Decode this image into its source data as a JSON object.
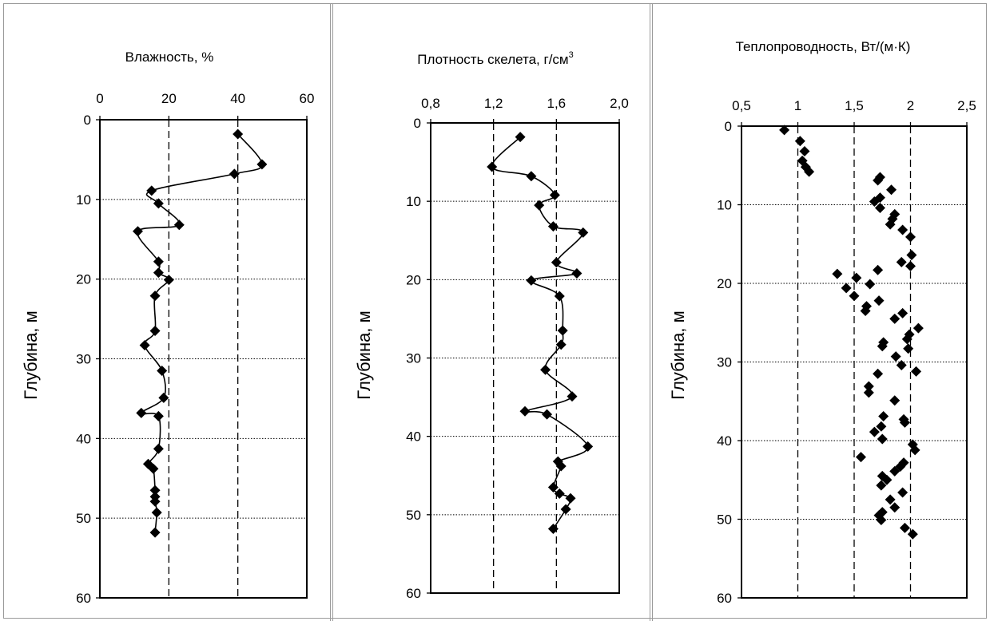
{
  "chart_data": [
    {
      "type": "line",
      "title": "Влажность, %",
      "xlabel": "Влажность, %",
      "ylabel": "Глубина, м",
      "xlim": [
        0,
        60
      ],
      "ylim": [
        0,
        60
      ],
      "y_inverted": true,
      "x_axis_position": "top",
      "xticks": [
        0,
        20,
        40,
        60
      ],
      "yticks": [
        0,
        10,
        20,
        30,
        40,
        50,
        60
      ],
      "vertical_reference_lines": [
        20,
        40
      ],
      "horizontal_gridlines": [
        10,
        20,
        30,
        40,
        50
      ],
      "marker": "diamond",
      "series": [
        {
          "points": [
            [
              40,
              1.8
            ],
            [
              47,
              5.6
            ],
            [
              39,
              6.8
            ],
            [
              15,
              8.9
            ],
            [
              17,
              10.5
            ],
            [
              23,
              13.2
            ],
            [
              11,
              14
            ],
            [
              17,
              17.8
            ],
            [
              17,
              19.2
            ],
            [
              20,
              20.1
            ],
            [
              16,
              22.1
            ],
            [
              16,
              26.5
            ],
            [
              13,
              28.3
            ],
            [
              18,
              31.5
            ],
            [
              18.5,
              34.9
            ],
            [
              12,
              36.8
            ],
            [
              17,
              37.2
            ],
            [
              17,
              41.3
            ],
            [
              14,
              43.2
            ],
            [
              15.5,
              43.8
            ],
            [
              16,
              46.5
            ],
            [
              16,
              47.3
            ],
            [
              16,
              47.9
            ],
            [
              16.5,
              49.3
            ],
            [
              16,
              51.8
            ]
          ]
        }
      ]
    },
    {
      "type": "line",
      "title": "Плотность скелета, г/см",
      "title_superscript": "3",
      "xlabel": "Плотность скелета, г/см3",
      "ylabel": "Глубина, м",
      "xlim": [
        0.8,
        2.0
      ],
      "ylim": [
        0,
        60
      ],
      "y_inverted": true,
      "x_axis_position": "top",
      "xticks": [
        "0,8",
        "1,2",
        "1,6",
        "2,0"
      ],
      "yticks": [
        0,
        10,
        20,
        30,
        40,
        50,
        60
      ],
      "vertical_reference_lines": [
        1.2,
        1.6
      ],
      "horizontal_gridlines": [
        10,
        20,
        30,
        40,
        50
      ],
      "marker": "diamond",
      "series": [
        {
          "points": [
            [
              1.37,
              1.8
            ],
            [
              1.19,
              5.6
            ],
            [
              1.44,
              6.8
            ],
            [
              1.59,
              9.2
            ],
            [
              1.49,
              10.5
            ],
            [
              1.58,
              13.2
            ],
            [
              1.77,
              14
            ],
            [
              1.6,
              17.8
            ],
            [
              1.73,
              19.2
            ],
            [
              1.44,
              20.1
            ],
            [
              1.62,
              22.1
            ],
            [
              1.64,
              26.5
            ],
            [
              1.63,
              28.3
            ],
            [
              1.53,
              31.5
            ],
            [
              1.7,
              34.9
            ],
            [
              1.4,
              36.8
            ],
            [
              1.54,
              37.2
            ],
            [
              1.8,
              41.3
            ],
            [
              1.61,
              43.2
            ],
            [
              1.63,
              43.8
            ],
            [
              1.58,
              46.5
            ],
            [
              1.62,
              47.3
            ],
            [
              1.69,
              47.9
            ],
            [
              1.66,
              49.3
            ],
            [
              1.58,
              51.8
            ]
          ]
        }
      ]
    },
    {
      "type": "scatter",
      "title": "Теплопроводность, Вт/(м·К)",
      "xlabel": "Теплопроводность, Вт/(м·К)",
      "ylabel": "Глубина, м",
      "xlim": [
        0.5,
        2.5
      ],
      "ylim": [
        0,
        60
      ],
      "y_inverted": true,
      "x_axis_position": "top",
      "xticks": [
        "0,5",
        "1",
        "1,5",
        "2",
        "2,5"
      ],
      "yticks": [
        0,
        10,
        20,
        30,
        40,
        50,
        60
      ],
      "vertical_reference_lines": [
        1.0,
        1.5,
        2.0
      ],
      "horizontal_gridlines": [
        10,
        20,
        30,
        40,
        50
      ],
      "marker": "diamond",
      "series": [
        {
          "points": [
            [
              0.88,
              0.5
            ],
            [
              1.02,
              1.9
            ],
            [
              1.06,
              3.2
            ],
            [
              1.04,
              4.4
            ],
            [
              1.07,
              5.2
            ],
            [
              1.1,
              5.8
            ],
            [
              1.73,
              6.5
            ],
            [
              1.71,
              6.9
            ],
            [
              1.83,
              8.1
            ],
            [
              1.73,
              9.1
            ],
            [
              1.68,
              9.6
            ],
            [
              1.73,
              10.4
            ],
            [
              1.86,
              11.2
            ],
            [
              1.84,
              11.8
            ],
            [
              1.82,
              12.5
            ],
            [
              1.93,
              13.2
            ],
            [
              2.0,
              14.1
            ],
            [
              2.01,
              16.4
            ],
            [
              1.92,
              17.3
            ],
            [
              2.0,
              17.8
            ],
            [
              1.71,
              18.3
            ],
            [
              1.35,
              18.8
            ],
            [
              1.52,
              19.3
            ],
            [
              1.64,
              20.1
            ],
            [
              1.43,
              20.6
            ],
            [
              1.5,
              21.6
            ],
            [
              1.72,
              22.2
            ],
            [
              1.61,
              22.9
            ],
            [
              1.6,
              23.5
            ],
            [
              1.93,
              23.8
            ],
            [
              1.86,
              24.5
            ],
            [
              2.07,
              25.7
            ],
            [
              1.99,
              26.5
            ],
            [
              1.97,
              27.1
            ],
            [
              1.76,
              27.5
            ],
            [
              1.75,
              28
            ],
            [
              1.98,
              28.3
            ],
            [
              1.87,
              29.3
            ],
            [
              1.92,
              30.4
            ],
            [
              2.05,
              31.2
            ],
            [
              1.71,
              31.5
            ],
            [
              1.63,
              33.1
            ],
            [
              1.63,
              33.9
            ],
            [
              1.86,
              34.9
            ],
            [
              1.76,
              36.9
            ],
            [
              1.94,
              37.3
            ],
            [
              1.95,
              37.7
            ],
            [
              1.74,
              38.2
            ],
            [
              1.68,
              38.9
            ],
            [
              1.75,
              39.8
            ],
            [
              2.02,
              40.5
            ],
            [
              2.04,
              41.2
            ],
            [
              1.56,
              42.1
            ],
            [
              1.94,
              42.8
            ],
            [
              1.91,
              43.3
            ],
            [
              1.86,
              43.9
            ],
            [
              1.75,
              44.5
            ],
            [
              1.79,
              45
            ],
            [
              1.74,
              45.7
            ],
            [
              1.93,
              46.6
            ],
            [
              1.82,
              47.5
            ],
            [
              1.86,
              48.5
            ],
            [
              1.75,
              49.1
            ],
            [
              1.72,
              49.5
            ],
            [
              1.74,
              50.1
            ],
            [
              1.95,
              51.1
            ],
            [
              2.02,
              51.9
            ]
          ]
        }
      ]
    }
  ]
}
